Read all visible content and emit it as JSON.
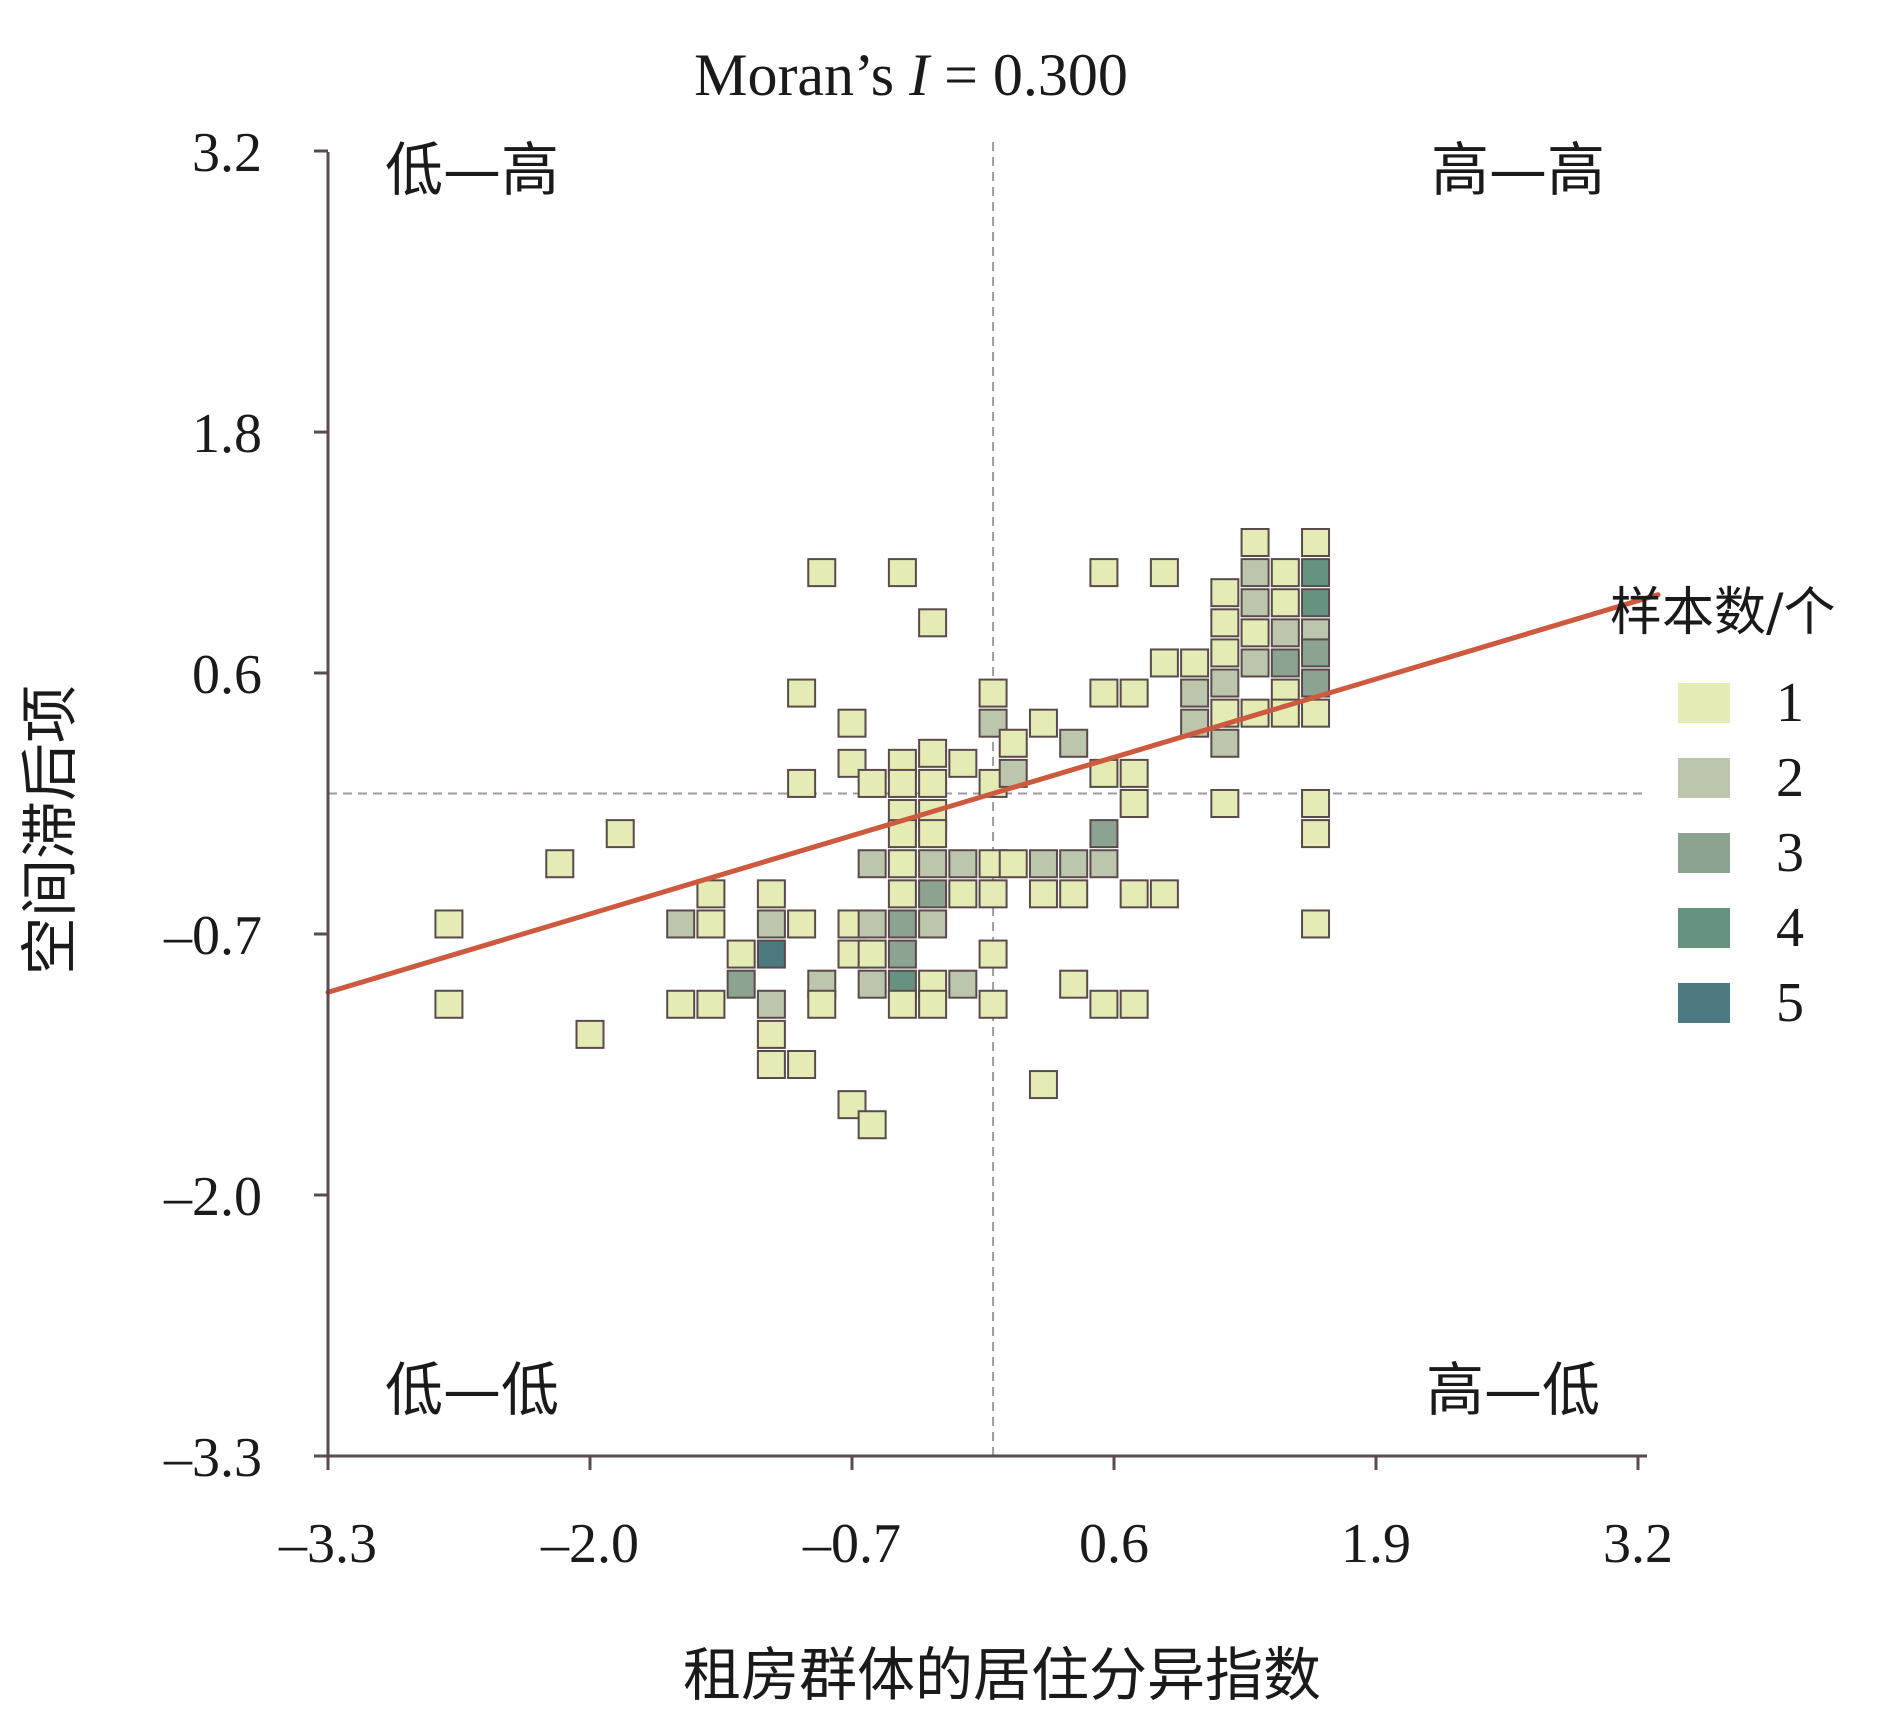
{
  "chart_data": {
    "type": "heatmap",
    "title_prefix": "Moran’s ",
    "title_italic": "I",
    "title_suffix": " =  0.300",
    "xlabel": "租房群体的居住分异指数",
    "ylabel": "空间滞后项",
    "xlim": [
      -3.3,
      3.3
    ],
    "ylim": [
      -3.3,
      3.2
    ],
    "x_ticks": [
      -3.3,
      -2.0,
      -0.7,
      0.6,
      1.9,
      3.2
    ],
    "y_ticks": [
      -3.3,
      -2.0,
      -0.7,
      0.6,
      1.8,
      3.2
    ],
    "x_tick_labels": [
      "–3.3",
      "–2.0",
      "–0.7",
      "0.6",
      "1.9",
      "3.2"
    ],
    "y_tick_labels": [
      "–3.3",
      "–2.0",
      "–0.7",
      "0.6",
      "1.8",
      "3.2"
    ],
    "mean_x": 0.0,
    "mean_y": 0.0,
    "regression": {
      "slope": 0.3,
      "intercept": 0.0
    },
    "quadrants": {
      "top_left": "低—高",
      "top_right": "高—高",
      "bottom_left": "低—低",
      "bottom_right": "高—低"
    },
    "legend": {
      "title": "样本数/个",
      "levels": [
        {
          "label": "1",
          "value": 1,
          "color": "#e4ebb4"
        },
        {
          "label": "2",
          "value": 2,
          "color": "#bcc6ac"
        },
        {
          "label": "3",
          "value": 3,
          "color": "#8da391"
        },
        {
          "label": "4",
          "value": 4,
          "color": "#66937f"
        },
        {
          "label": "5",
          "value": 5,
          "color": "#4d7a80"
        }
      ]
    },
    "colors": {
      "axis": "#5a4a52",
      "regression_line": "#cd5a3e",
      "reference_line": "#a09aa0",
      "cell_border": "#5a4a4a"
    },
    "cells": [
      {
        "x": -2.7,
        "y": -0.65,
        "count": 1
      },
      {
        "x": -2.7,
        "y": -1.05,
        "count": 1
      },
      {
        "x": -2.0,
        "y": -1.2,
        "count": 1
      },
      {
        "x": -2.15,
        "y": -0.35,
        "count": 1
      },
      {
        "x": -1.85,
        "y": -0.2,
        "count": 1
      },
      {
        "x": -1.55,
        "y": -0.65,
        "count": 2
      },
      {
        "x": -1.55,
        "y": -1.05,
        "count": 1
      },
      {
        "x": -1.4,
        "y": -0.5,
        "count": 1
      },
      {
        "x": -1.4,
        "y": -0.65,
        "count": 1
      },
      {
        "x": -1.4,
        "y": -1.05,
        "count": 1
      },
      {
        "x": -1.25,
        "y": -0.8,
        "count": 1
      },
      {
        "x": -1.25,
        "y": -0.95,
        "count": 3
      },
      {
        "x": -1.1,
        "y": -0.5,
        "count": 1
      },
      {
        "x": -1.1,
        "y": -0.65,
        "count": 2
      },
      {
        "x": -1.1,
        "y": -0.8,
        "count": 5
      },
      {
        "x": -1.1,
        "y": -1.05,
        "count": 2
      },
      {
        "x": -1.1,
        "y": -1.2,
        "count": 1
      },
      {
        "x": -1.1,
        "y": -1.35,
        "count": 1
      },
      {
        "x": -0.95,
        "y": -0.65,
        "count": 1
      },
      {
        "x": -0.95,
        "y": -1.35,
        "count": 1
      },
      {
        "x": -0.95,
        "y": 0.05,
        "count": 1
      },
      {
        "x": -0.95,
        "y": 0.5,
        "count": 1
      },
      {
        "x": -0.85,
        "y": 1.1,
        "count": 1
      },
      {
        "x": -0.85,
        "y": -0.95,
        "count": 2
      },
      {
        "x": -0.85,
        "y": -1.05,
        "count": 1
      },
      {
        "x": -0.7,
        "y": 0.35,
        "count": 1
      },
      {
        "x": -0.7,
        "y": 0.15,
        "count": 1
      },
      {
        "x": -0.7,
        "y": -0.65,
        "count": 1
      },
      {
        "x": -0.7,
        "y": -0.8,
        "count": 1
      },
      {
        "x": -0.7,
        "y": -1.55,
        "count": 1
      },
      {
        "x": -0.6,
        "y": 0.05,
        "count": 1
      },
      {
        "x": -0.6,
        "y": -0.35,
        "count": 2
      },
      {
        "x": -0.6,
        "y": -0.65,
        "count": 2
      },
      {
        "x": -0.6,
        "y": -0.8,
        "count": 1
      },
      {
        "x": -0.6,
        "y": -0.95,
        "count": 2
      },
      {
        "x": -0.6,
        "y": -1.65,
        "count": 1
      },
      {
        "x": -0.45,
        "y": 1.1,
        "count": 1
      },
      {
        "x": -0.45,
        "y": 0.15,
        "count": 1
      },
      {
        "x": -0.45,
        "y": 0.05,
        "count": 1
      },
      {
        "x": -0.45,
        "y": -0.1,
        "count": 1
      },
      {
        "x": -0.45,
        "y": -0.2,
        "count": 1
      },
      {
        "x": -0.45,
        "y": -0.35,
        "count": 1
      },
      {
        "x": -0.45,
        "y": -0.5,
        "count": 1
      },
      {
        "x": -0.45,
        "y": -0.65,
        "count": 3
      },
      {
        "x": -0.45,
        "y": -0.8,
        "count": 3
      },
      {
        "x": -0.45,
        "y": -0.95,
        "count": 4
      },
      {
        "x": -0.45,
        "y": -1.05,
        "count": 1
      },
      {
        "x": -0.3,
        "y": 0.85,
        "count": 1
      },
      {
        "x": -0.3,
        "y": 0.2,
        "count": 1
      },
      {
        "x": -0.3,
        "y": 0.05,
        "count": 1
      },
      {
        "x": -0.3,
        "y": -0.1,
        "count": 1
      },
      {
        "x": -0.3,
        "y": -0.2,
        "count": 1
      },
      {
        "x": -0.3,
        "y": -0.35,
        "count": 2
      },
      {
        "x": -0.3,
        "y": -0.5,
        "count": 3
      },
      {
        "x": -0.3,
        "y": -0.65,
        "count": 2
      },
      {
        "x": -0.3,
        "y": -0.95,
        "count": 1
      },
      {
        "x": -0.3,
        "y": -1.05,
        "count": 1
      },
      {
        "x": -0.15,
        "y": 0.15,
        "count": 1
      },
      {
        "x": -0.15,
        "y": -0.35,
        "count": 2
      },
      {
        "x": -0.15,
        "y": -0.5,
        "count": 1
      },
      {
        "x": -0.15,
        "y": -0.95,
        "count": 2
      },
      {
        "x": 0.0,
        "y": 0.5,
        "count": 1
      },
      {
        "x": 0.0,
        "y": 0.35,
        "count": 2
      },
      {
        "x": 0.0,
        "y": 0.05,
        "count": 1
      },
      {
        "x": 0.0,
        "y": -0.35,
        "count": 1
      },
      {
        "x": 0.0,
        "y": -0.5,
        "count": 1
      },
      {
        "x": 0.0,
        "y": -0.8,
        "count": 1
      },
      {
        "x": 0.0,
        "y": -1.05,
        "count": 1
      },
      {
        "x": 0.1,
        "y": 0.25,
        "count": 1
      },
      {
        "x": 0.1,
        "y": 0.1,
        "count": 2
      },
      {
        "x": 0.1,
        "y": -0.35,
        "count": 1
      },
      {
        "x": 0.25,
        "y": 0.35,
        "count": 1
      },
      {
        "x": 0.25,
        "y": -0.35,
        "count": 2
      },
      {
        "x": 0.25,
        "y": -0.5,
        "count": 1
      },
      {
        "x": 0.25,
        "y": -1.45,
        "count": 1
      },
      {
        "x": 0.4,
        "y": 0.25,
        "count": 2
      },
      {
        "x": 0.4,
        "y": -0.35,
        "count": 2
      },
      {
        "x": 0.4,
        "y": -0.5,
        "count": 1
      },
      {
        "x": 0.4,
        "y": -0.95,
        "count": 1
      },
      {
        "x": 0.55,
        "y": 1.1,
        "count": 1
      },
      {
        "x": 0.55,
        "y": 0.5,
        "count": 1
      },
      {
        "x": 0.55,
        "y": 0.1,
        "count": 1
      },
      {
        "x": 0.55,
        "y": -0.2,
        "count": 3
      },
      {
        "x": 0.55,
        "y": -0.35,
        "count": 2
      },
      {
        "x": 0.55,
        "y": -1.05,
        "count": 1
      },
      {
        "x": 0.7,
        "y": 0.5,
        "count": 1
      },
      {
        "x": 0.7,
        "y": 0.1,
        "count": 1
      },
      {
        "x": 0.7,
        "y": -0.05,
        "count": 1
      },
      {
        "x": 0.7,
        "y": -0.5,
        "count": 1
      },
      {
        "x": 0.7,
        "y": -1.05,
        "count": 1
      },
      {
        "x": 0.85,
        "y": 1.1,
        "count": 1
      },
      {
        "x": 0.85,
        "y": 0.65,
        "count": 1
      },
      {
        "x": 0.85,
        "y": -0.5,
        "count": 1
      },
      {
        "x": 1.0,
        "y": 0.65,
        "count": 1
      },
      {
        "x": 1.0,
        "y": 0.5,
        "count": 2
      },
      {
        "x": 1.0,
        "y": 0.35,
        "count": 2
      },
      {
        "x": 1.15,
        "y": 1.0,
        "count": 1
      },
      {
        "x": 1.15,
        "y": 0.85,
        "count": 1
      },
      {
        "x": 1.15,
        "y": 0.7,
        "count": 1
      },
      {
        "x": 1.15,
        "y": 0.55,
        "count": 2
      },
      {
        "x": 1.15,
        "y": 0.4,
        "count": 1
      },
      {
        "x": 1.15,
        "y": 0.25,
        "count": 2
      },
      {
        "x": 1.15,
        "y": -0.05,
        "count": 1
      },
      {
        "x": 1.3,
        "y": 1.25,
        "count": 1
      },
      {
        "x": 1.3,
        "y": 1.1,
        "count": 2
      },
      {
        "x": 1.3,
        "y": 0.95,
        "count": 2
      },
      {
        "x": 1.3,
        "y": 0.8,
        "count": 1
      },
      {
        "x": 1.3,
        "y": 0.65,
        "count": 2
      },
      {
        "x": 1.3,
        "y": 0.4,
        "count": 1
      },
      {
        "x": 1.45,
        "y": 1.1,
        "count": 1
      },
      {
        "x": 1.45,
        "y": 0.95,
        "count": 1
      },
      {
        "x": 1.45,
        "y": 0.8,
        "count": 2
      },
      {
        "x": 1.45,
        "y": 0.65,
        "count": 3
      },
      {
        "x": 1.45,
        "y": 0.5,
        "count": 1
      },
      {
        "x": 1.45,
        "y": 0.4,
        "count": 1
      },
      {
        "x": 1.6,
        "y": 1.25,
        "count": 1
      },
      {
        "x": 1.6,
        "y": 1.1,
        "count": 4
      },
      {
        "x": 1.6,
        "y": 0.95,
        "count": 4
      },
      {
        "x": 1.6,
        "y": 0.8,
        "count": 2
      },
      {
        "x": 1.6,
        "y": 0.7,
        "count": 3
      },
      {
        "x": 1.6,
        "y": 0.55,
        "count": 3
      },
      {
        "x": 1.6,
        "y": 0.4,
        "count": 1
      },
      {
        "x": 1.6,
        "y": -0.05,
        "count": 1
      },
      {
        "x": 1.6,
        "y": -0.2,
        "count": 1
      },
      {
        "x": 1.6,
        "y": -0.65,
        "count": 1
      }
    ]
  }
}
